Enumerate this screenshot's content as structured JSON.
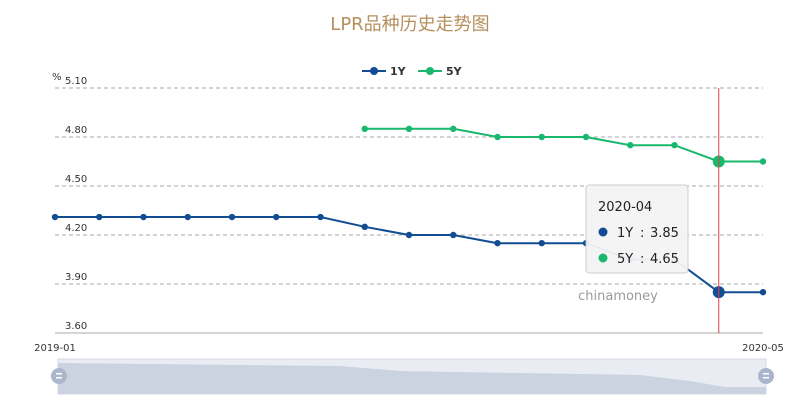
{
  "chart_data": {
    "type": "line",
    "title": "LPR品种历史走势图",
    "ylabel": "%",
    "ylim": [
      3.6,
      5.1
    ],
    "yticks": [
      "3.60",
      "3.90",
      "4.20",
      "4.50",
      "4.80",
      "5.10"
    ],
    "x_axis_labels": [
      "2019-01",
      "2020-05"
    ],
    "x": [
      "2019-01",
      "2019-02",
      "2019-03",
      "2019-04",
      "2019-05",
      "2019-06",
      "2019-07",
      "2019-08",
      "2019-09",
      "2019-10",
      "2019-11",
      "2019-12",
      "2020-01",
      "2020-02",
      "2020-03",
      "2020-04",
      "2020-05"
    ],
    "series": [
      {
        "name": "1Y",
        "color": "#124d93",
        "values": [
          4.31,
          4.31,
          4.31,
          4.31,
          4.31,
          4.31,
          4.31,
          4.25,
          4.2,
          4.2,
          4.15,
          4.15,
          4.15,
          4.05,
          4.05,
          3.85,
          3.85
        ]
      },
      {
        "name": "5Y",
        "color": "#19b86e",
        "values": [
          null,
          null,
          null,
          null,
          null,
          null,
          null,
          4.85,
          4.85,
          4.85,
          4.8,
          4.8,
          4.8,
          4.75,
          4.75,
          4.65,
          4.65
        ]
      }
    ],
    "grid": "horizontal-dashed",
    "legend": "top-center",
    "tooltip": {
      "x": "2020-04",
      "rows": [
        {
          "name": "1Y",
          "value": "3.85"
        },
        {
          "name": "5Y",
          "value": "4.65"
        }
      ]
    },
    "watermark": "chinamoney"
  }
}
